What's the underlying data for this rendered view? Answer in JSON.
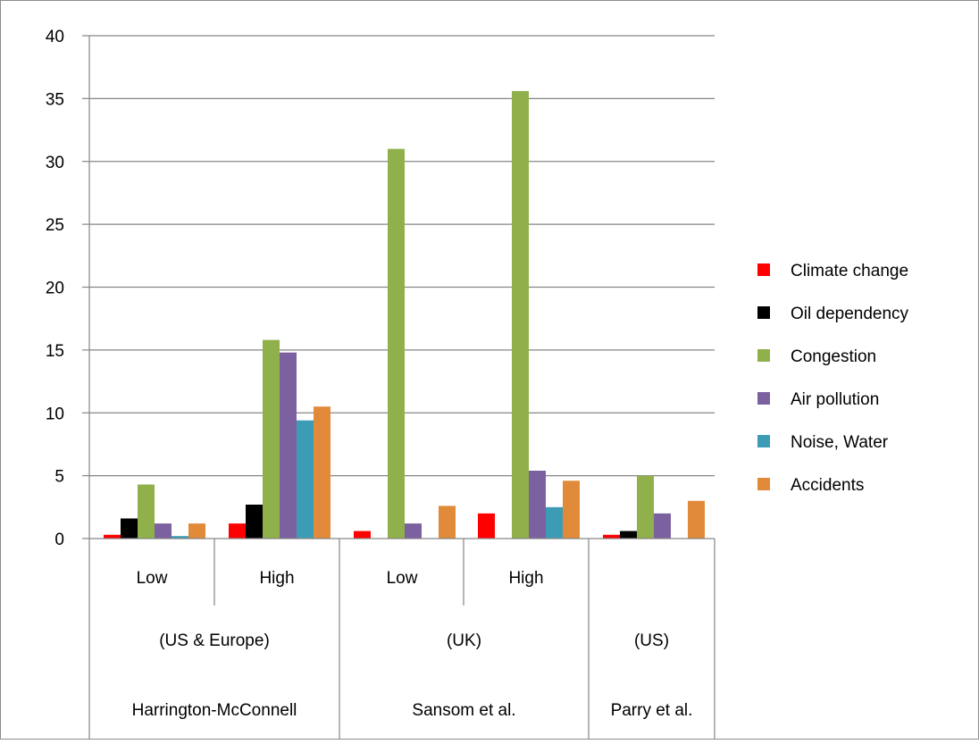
{
  "chart_data": {
    "type": "bar",
    "title": "",
    "xlabel": "",
    "ylabel": "",
    "ylim": [
      0,
      40
    ],
    "yticks": [
      0,
      5,
      10,
      15,
      20,
      25,
      30,
      35,
      40
    ],
    "grid": true,
    "legend_position": "right",
    "categories": [
      "Low",
      "High",
      "Low",
      "High",
      ""
    ],
    "category_groups": [
      {
        "region": "(US & Europe)",
        "study": "Harrington-McConnell",
        "categories": [
          "Low",
          "High"
        ]
      },
      {
        "region": "(UK)",
        "study": "Sansom et al.",
        "categories": [
          "Low",
          "High"
        ]
      },
      {
        "region": "(US)",
        "study": "Parry et al.",
        "categories": [
          ""
        ]
      }
    ],
    "series": [
      {
        "name": "Climate change",
        "color": "#ff0000",
        "values": [
          0.3,
          1.2,
          0.6,
          2.0,
          0.3
        ]
      },
      {
        "name": "Oil dependency",
        "color": "#000000",
        "values": [
          1.6,
          2.7,
          0,
          0,
          0.6
        ]
      },
      {
        "name": "Congestion",
        "color": "#8fb04a",
        "values": [
          4.3,
          15.8,
          31.0,
          35.6,
          5.0
        ]
      },
      {
        "name": "Air pollution",
        "color": "#7b61a0",
        "values": [
          1.2,
          14.8,
          1.2,
          5.4,
          2.0
        ]
      },
      {
        "name": "Noise, Water",
        "color": "#3d9cb5",
        "values": [
          0.2,
          9.4,
          0,
          2.5,
          0
        ]
      },
      {
        "name": "Accidents",
        "color": "#e08a3a",
        "values": [
          1.2,
          10.5,
          2.6,
          4.6,
          3.0
        ]
      }
    ]
  }
}
